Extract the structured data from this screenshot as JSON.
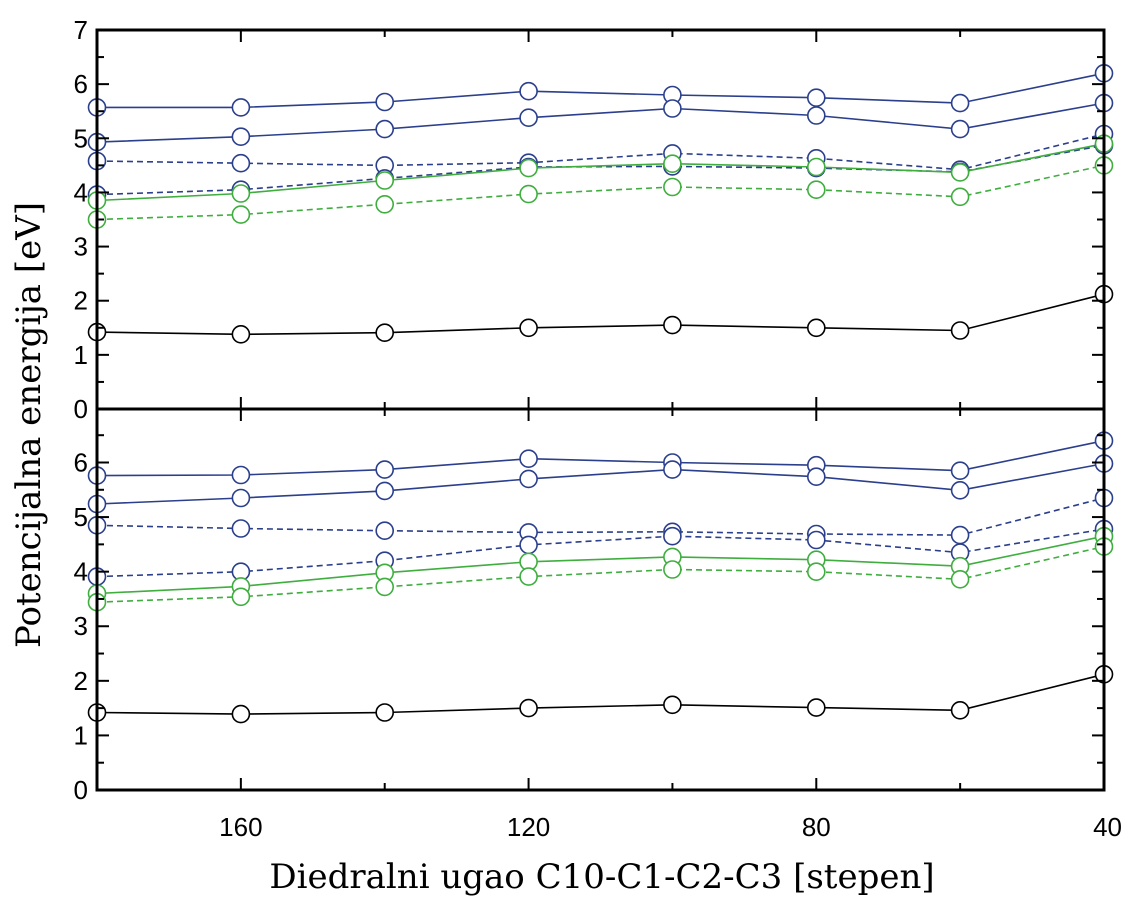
{
  "chart_data": [
    {
      "type": "line",
      "panel": "top",
      "x": [
        180,
        160,
        140,
        120,
        100,
        80,
        60,
        40
      ],
      "xlim": [
        180,
        40
      ],
      "ylim": [
        0,
        7
      ],
      "yticks": [
        0,
        1,
        2,
        3,
        4,
        5,
        6,
        7
      ],
      "grid": false,
      "colors": {
        "blue": "#2b3f8c",
        "green": "#3fae3f",
        "black": "#000000"
      },
      "series": [
        {
          "color": "blue",
          "dash": false,
          "values": [
            5.57,
            5.57,
            5.67,
            5.87,
            5.8,
            5.75,
            5.65,
            6.2
          ]
        },
        {
          "color": "blue",
          "dash": false,
          "values": [
            4.93,
            5.03,
            5.17,
            5.38,
            5.55,
            5.42,
            5.17,
            5.65
          ]
        },
        {
          "color": "blue",
          "dash": true,
          "values": [
            4.58,
            4.54,
            4.5,
            4.55,
            4.72,
            4.63,
            4.42,
            5.08
          ]
        },
        {
          "color": "blue",
          "dash": true,
          "values": [
            3.96,
            4.05,
            4.26,
            4.47,
            4.48,
            4.45,
            4.38,
            4.87
          ]
        },
        {
          "color": "green",
          "dash": false,
          "values": [
            3.85,
            3.98,
            4.22,
            4.45,
            4.53,
            4.47,
            4.37,
            4.9
          ]
        },
        {
          "color": "green",
          "dash": true,
          "values": [
            3.5,
            3.59,
            3.78,
            3.97,
            4.1,
            4.05,
            3.92,
            4.5
          ]
        },
        {
          "color": "black",
          "dash": false,
          "values": [
            1.42,
            1.38,
            1.41,
            1.5,
            1.55,
            1.5,
            1.45,
            2.12
          ]
        }
      ]
    },
    {
      "type": "line",
      "panel": "bottom",
      "x": [
        180,
        160,
        140,
        120,
        100,
        80,
        60,
        40
      ],
      "xlim": [
        180,
        40
      ],
      "ylim": [
        0,
        7
      ],
      "yticks": [
        0,
        1,
        2,
        3,
        4,
        5,
        6
      ],
      "xticks": [
        160,
        120,
        80,
        40
      ],
      "xlabel": "Diedralni ugao C10-C1-C2-C3 [stepen]",
      "grid": false,
      "series": [
        {
          "color": "blue",
          "dash": false,
          "values": [
            5.76,
            5.77,
            5.87,
            6.07,
            6.0,
            5.95,
            5.85,
            6.4
          ]
        },
        {
          "color": "blue",
          "dash": false,
          "values": [
            5.24,
            5.35,
            5.48,
            5.7,
            5.87,
            5.74,
            5.49,
            5.98
          ]
        },
        {
          "color": "blue",
          "dash": true,
          "values": [
            4.85,
            4.79,
            4.75,
            4.72,
            4.73,
            4.69,
            4.67,
            5.35
          ]
        },
        {
          "color": "blue",
          "dash": true,
          "values": [
            3.91,
            4.0,
            4.2,
            4.49,
            4.65,
            4.58,
            4.35,
            4.78
          ]
        },
        {
          "color": "green",
          "dash": false,
          "values": [
            3.6,
            3.73,
            3.98,
            4.18,
            4.27,
            4.22,
            4.1,
            4.65
          ]
        },
        {
          "color": "green",
          "dash": true,
          "values": [
            3.44,
            3.54,
            3.72,
            3.91,
            4.04,
            4.0,
            3.86,
            4.46
          ]
        },
        {
          "color": "black",
          "dash": false,
          "values": [
            1.42,
            1.39,
            1.42,
            1.5,
            1.56,
            1.51,
            1.46,
            2.12
          ]
        }
      ]
    }
  ],
  "ylabel": "Potencijalna energija [eV]"
}
